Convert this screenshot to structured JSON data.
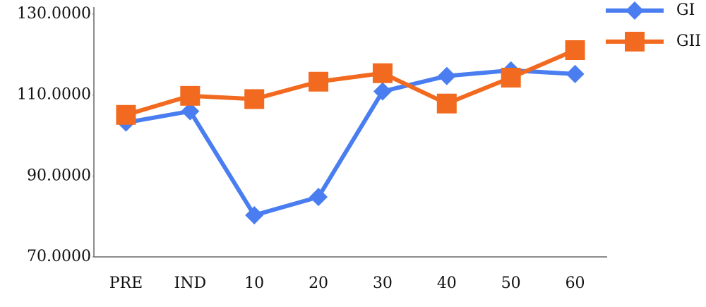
{
  "chart_data": {
    "type": "line",
    "categories": [
      "PRE",
      "IND",
      "10",
      "20",
      "30",
      "40",
      "50",
      "60"
    ],
    "series": [
      {
        "name": "GI",
        "color": "#4a7ef0",
        "marker": "diamond",
        "values": [
          103.2,
          106.0,
          80.3,
          84.8,
          110.9,
          114.7,
          116.1,
          115.2
        ]
      },
      {
        "name": "GII",
        "color": "#f26a1f",
        "marker": "square",
        "values": [
          105.1,
          109.8,
          109.0,
          113.3,
          115.4,
          107.9,
          114.3,
          121.1
        ]
      }
    ],
    "ylim": [
      70,
      130
    ],
    "yticks": [
      {
        "value": 70,
        "label": "70.0000"
      },
      {
        "value": 90,
        "label": "90.0000"
      },
      {
        "value": 110,
        "label": "110.0000"
      },
      {
        "value": 130,
        "label": "130.0000"
      }
    ],
    "grid": false,
    "legend": "top-right"
  }
}
